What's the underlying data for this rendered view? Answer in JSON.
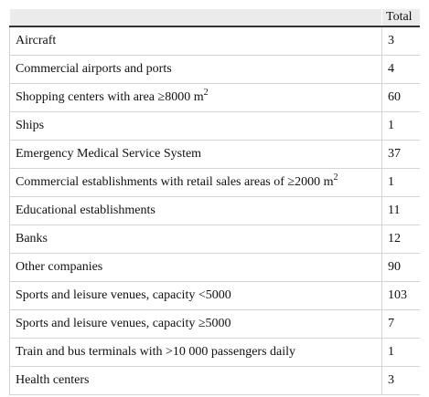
{
  "table": {
    "header": [
      "Total"
    ],
    "rows": [
      {
        "label": "Aircraft",
        "total": 3
      },
      {
        "label": "Commercial airports and ports",
        "total": 4
      },
      {
        "label": "Shopping centers with area ≥8000 m",
        "sup": "2",
        "total": 60
      },
      {
        "label": "Ships",
        "total": 1
      },
      {
        "label": "Emergency Medical Service System",
        "total": 37
      },
      {
        "label": "Commercial establishments with retail sales areas of ≥2000 m",
        "sup": "2",
        "total": 1
      },
      {
        "label": "Educational establishments",
        "total": 11
      },
      {
        "label": "Banks",
        "total": 12
      },
      {
        "label": "Other companies",
        "total": 90
      },
      {
        "label": "Sports and leisure venues, capacity <5000",
        "total": 103
      },
      {
        "label": "Sports and leisure venues, capacity ≥5000",
        "total": 7
      },
      {
        "label": "Train and bus terminals with >10 000 passengers daily",
        "total": 1
      },
      {
        "label": "Health centers",
        "total": 3
      }
    ]
  }
}
